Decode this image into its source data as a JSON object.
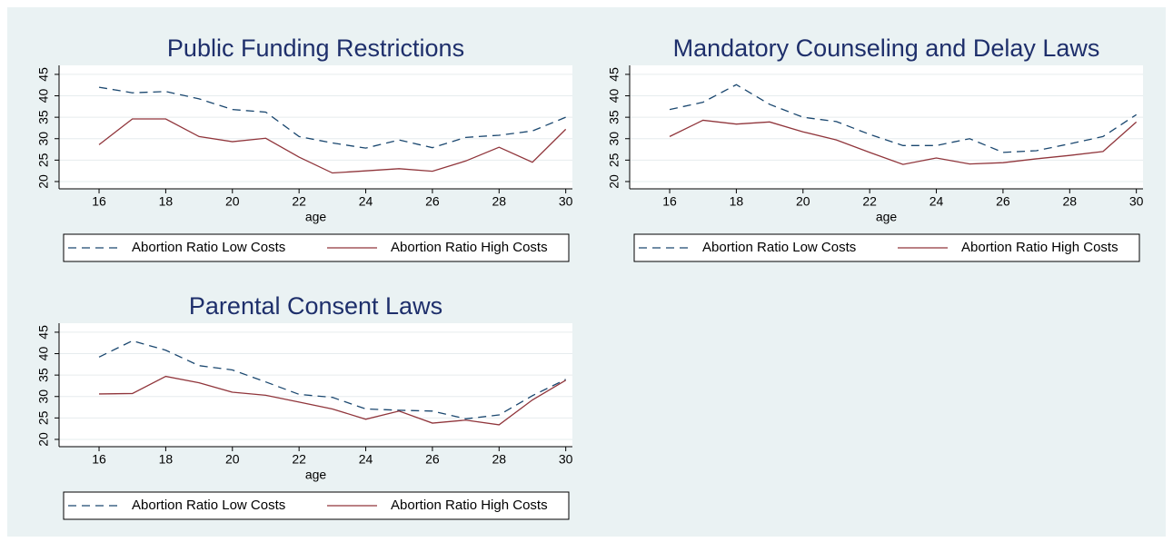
{
  "chart_data": [
    {
      "type": "line",
      "title": "Public Funding Restrictions",
      "x_label": "age",
      "x": [
        16,
        17,
        18,
        19,
        20,
        21,
        22,
        23,
        24,
        25,
        26,
        27,
        28,
        29,
        30
      ],
      "series": [
        {
          "name": "Abortion Ratio Low Costs",
          "color": "#1a476f",
          "dash": true,
          "values": [
            42,
            40.7,
            41,
            39.3,
            36.8,
            36.2,
            30.5,
            29,
            27.8,
            29.7,
            27.9,
            30.3,
            30.8,
            31.8,
            35
          ]
        },
        {
          "name": "Abortion Ratio High Costs",
          "color": "#90353b",
          "dash": false,
          "values": [
            28.6,
            34.6,
            34.6,
            30.5,
            29.3,
            30.1,
            25.7,
            22,
            22.5,
            23,
            22.4,
            24.8,
            28,
            24.5,
            32.2
          ]
        }
      ],
      "xlim": [
        14.8,
        30.2
      ],
      "xticks": [
        16,
        18,
        20,
        22,
        24,
        26,
        28,
        30
      ],
      "ylim": [
        18.3,
        47.1
      ],
      "yticks": [
        20,
        25,
        30,
        35,
        40,
        45
      ],
      "grid": true,
      "legend": "bottom"
    },
    {
      "type": "line",
      "title": "Mandatory Counseling and Delay Laws",
      "x_label": "age",
      "x": [
        16,
        17,
        18,
        19,
        20,
        21,
        22,
        23,
        24,
        25,
        26,
        27,
        28,
        29,
        30
      ],
      "series": [
        {
          "name": "Abortion Ratio Low Costs",
          "color": "#1a476f",
          "dash": true,
          "values": [
            36.8,
            38.5,
            42.6,
            38,
            35,
            34,
            31,
            28.4,
            28.4,
            30,
            26.8,
            27.2,
            28.8,
            30.5,
            35.6
          ]
        },
        {
          "name": "Abortion Ratio High Costs",
          "color": "#90353b",
          "dash": false,
          "values": [
            30.5,
            34.3,
            33.4,
            33.9,
            31.6,
            29.7,
            26.8,
            24,
            25.5,
            24.1,
            24.4,
            25.3,
            26.1,
            27,
            33.9
          ]
        }
      ],
      "xlim": [
        14.8,
        30.2
      ],
      "xticks": [
        16,
        18,
        20,
        22,
        24,
        26,
        28,
        30
      ],
      "ylim": [
        18.3,
        47.1
      ],
      "yticks": [
        20,
        25,
        30,
        35,
        40,
        45
      ],
      "grid": true,
      "legend": "bottom"
    },
    {
      "type": "line",
      "title": "Parental Consent Laws",
      "x_label": "age",
      "x": [
        16,
        17,
        18,
        19,
        20,
        21,
        22,
        23,
        24,
        25,
        26,
        27,
        28,
        29,
        30
      ],
      "series": [
        {
          "name": "Abortion Ratio Low Costs",
          "color": "#1a476f",
          "dash": true,
          "values": [
            39.2,
            43,
            40.8,
            37.2,
            36.2,
            33.4,
            30.5,
            29.8,
            27.1,
            26.8,
            26.6,
            24.8,
            25.7,
            30.2,
            34
          ]
        },
        {
          "name": "Abortion Ratio High Costs",
          "color": "#90353b",
          "dash": false,
          "values": [
            30.6,
            30.7,
            34.7,
            33.2,
            31,
            30.3,
            28.7,
            27.1,
            24.7,
            26.6,
            23.8,
            24.5,
            23.4,
            29.2,
            33.8
          ]
        }
      ],
      "xlim": [
        14.8,
        30.2
      ],
      "xticks": [
        16,
        18,
        20,
        22,
        24,
        26,
        28,
        30
      ],
      "ylim": [
        18.3,
        47.1
      ],
      "yticks": [
        20,
        25,
        30,
        35,
        40,
        45
      ],
      "grid": true,
      "legend": "bottom"
    }
  ]
}
